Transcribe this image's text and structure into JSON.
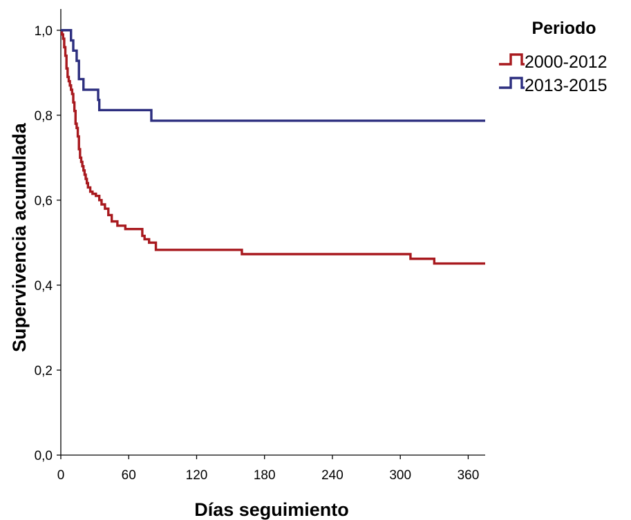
{
  "chart_data": {
    "type": "line",
    "step": true,
    "title": "",
    "xlabel": "Días seguimiento",
    "ylabel": "Supervivencia acumulada",
    "xlim": [
      0,
      375
    ],
    "ylim": [
      0,
      1.05
    ],
    "xticks": [
      0,
      60,
      120,
      180,
      240,
      300,
      360
    ],
    "xtick_labels": [
      "0",
      "60",
      "120",
      "180",
      "240",
      "300",
      "360"
    ],
    "yticks": [
      0,
      0.2,
      0.4,
      0.6,
      0.8,
      1.0
    ],
    "ytick_labels": [
      "0,0",
      "0,2",
      "0,4",
      "0,6",
      "0,8",
      "1,0"
    ],
    "grid": false,
    "legend": {
      "title": "Periodo",
      "position": "top-right-outside"
    },
    "series": [
      {
        "name": "2000-2012",
        "color": "#a8191e",
        "x": [
          0,
          1,
          2,
          3,
          4,
          5,
          6,
          7,
          8,
          9,
          10,
          11,
          12,
          13,
          14,
          15,
          16,
          17,
          18,
          19,
          20,
          21,
          22,
          23,
          24,
          26,
          28,
          31,
          34,
          36,
          39,
          42,
          45,
          50,
          57,
          72,
          74,
          78,
          84,
          160,
          309,
          330,
          375
        ],
        "y": [
          1.0,
          0.99,
          0.98,
          0.96,
          0.94,
          0.91,
          0.89,
          0.88,
          0.87,
          0.86,
          0.85,
          0.83,
          0.81,
          0.78,
          0.77,
          0.75,
          0.72,
          0.7,
          0.69,
          0.68,
          0.67,
          0.66,
          0.65,
          0.64,
          0.63,
          0.62,
          0.615,
          0.61,
          0.6,
          0.59,
          0.58,
          0.565,
          0.55,
          0.54,
          0.532,
          0.516,
          0.508,
          0.5,
          0.483,
          0.473,
          0.462,
          0.451,
          0.451
        ]
      },
      {
        "name": "2013-2015",
        "color": "#2c2e7f",
        "x": [
          0,
          9,
          11,
          14,
          16,
          20,
          33,
          34,
          80,
          375
        ],
        "y": [
          1.0,
          0.976,
          0.952,
          0.928,
          0.885,
          0.86,
          0.836,
          0.812,
          0.787,
          0.787
        ]
      }
    ]
  }
}
